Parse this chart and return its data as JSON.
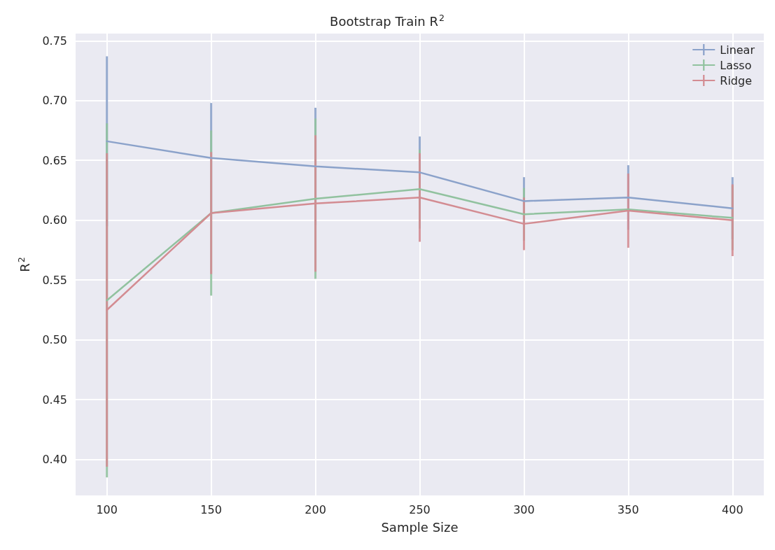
{
  "chart_data": {
    "type": "line",
    "title": "Bootstrap Train R$^{2}$",
    "xlabel": "Sample Size",
    "ylabel": "R$^{2}$",
    "x": [
      100,
      150,
      200,
      250,
      300,
      350,
      400
    ],
    "series": [
      {
        "name": "Linear",
        "color": "#8ba2ca",
        "values": [
          0.666,
          0.652,
          0.645,
          0.64,
          0.616,
          0.619,
          0.61
        ],
        "errors": [
          0.071,
          0.046,
          0.049,
          0.03,
          0.02,
          0.027,
          0.026
        ]
      },
      {
        "name": "Lasso",
        "color": "#91c29f",
        "values": [
          0.533,
          0.606,
          0.618,
          0.626,
          0.605,
          0.609,
          0.602
        ],
        "errors": [
          0.148,
          0.069,
          0.067,
          0.033,
          0.022,
          null,
          0.027
        ]
      },
      {
        "name": "Ridge",
        "color": "#d38c92",
        "values": [
          0.525,
          0.606,
          0.614,
          0.619,
          0.597,
          0.608,
          0.6
        ],
        "errors": [
          0.131,
          0.051,
          0.057,
          0.037,
          0.022,
          0.031,
          0.03
        ]
      }
    ],
    "xlim": [
      85,
      415
    ],
    "xticks": [
      100,
      150,
      200,
      250,
      300,
      350,
      400
    ],
    "ylim": [
      0.37,
      0.756
    ],
    "yticks": [
      {
        "value": 0.4,
        "label": "0.40"
      },
      {
        "value": 0.45,
        "label": "0.45"
      },
      {
        "value": 0.5,
        "label": "0.50"
      },
      {
        "value": 0.55,
        "label": "0.55"
      },
      {
        "value": 0.6,
        "label": "0.60"
      },
      {
        "value": 0.65,
        "label": "0.65"
      },
      {
        "value": 0.7,
        "label": "0.70"
      },
      {
        "value": 0.75,
        "label": "0.75"
      }
    ],
    "grid": true,
    "legend": "top right",
    "marker": "none"
  }
}
